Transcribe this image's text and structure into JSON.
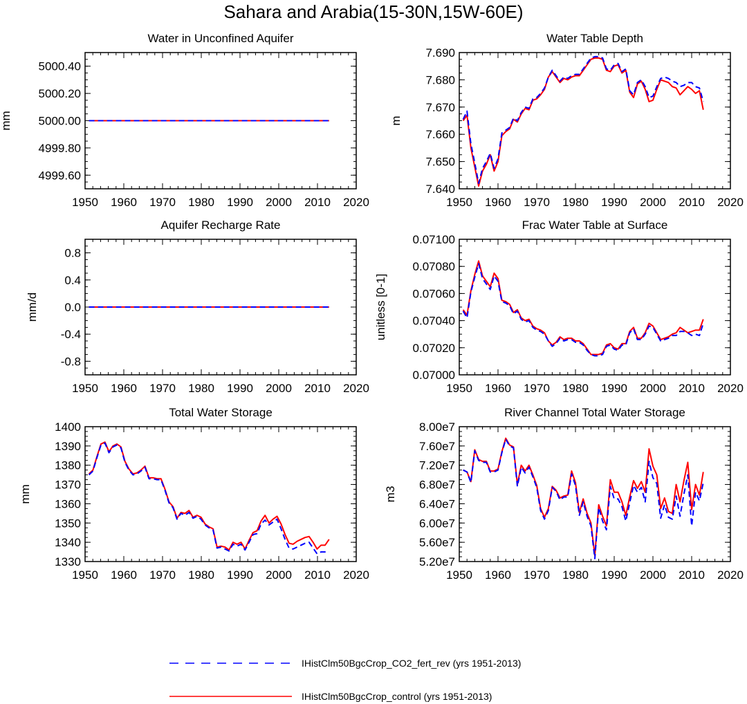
{
  "figure": {
    "title": "Sahara and Arabia(15-30N,15W-60E)"
  },
  "legend": {
    "items": [
      {
        "label": "IHistClm50BgcCrop_CO2_fert_rev (yrs 1951-2013)",
        "color": "#0000ff",
        "style": "dashed"
      },
      {
        "label": "IHistClm50BgcCrop_control (yrs 1951-2013)",
        "color": "#ff0000",
        "style": "solid"
      }
    ]
  },
  "chart_data": [
    {
      "type": "line",
      "title": "Water in Unconfined Aquifer",
      "ylabel": "mm",
      "xlim": [
        1950,
        2020
      ],
      "xticks": [
        1950,
        1960,
        1970,
        1980,
        1990,
        2000,
        2010,
        2020
      ],
      "ylim": [
        4999.5,
        5000.5
      ],
      "yticks": [
        4999.6,
        4999.8,
        5000.0,
        5000.2,
        5000.4
      ],
      "ytick_labels": [
        "4999.60",
        "4999.80",
        "5000.00",
        "5000.20",
        "5000.40"
      ],
      "x_start": 1951,
      "series": [
        {
          "name": "IHistClm50BgcCrop_CO2_fert_rev (yrs 1951-2013)",
          "color": "#0000ff",
          "style": "dashed",
          "values": [
            5000.0,
            5000.0
          ]
        },
        {
          "name": "IHistClm50BgcCrop_control (yrs 1951-2013)",
          "color": "#ff0000",
          "style": "solid",
          "values": [
            5000.0,
            5000.0
          ]
        }
      ],
      "x_end": 2013
    },
    {
      "type": "line",
      "title": "Water Table Depth",
      "ylabel": "m",
      "xlim": [
        1950,
        2020
      ],
      "xticks": [
        1950,
        1960,
        1970,
        1980,
        1990,
        2000,
        2010,
        2020
      ],
      "ylim": [
        7.64,
        7.69
      ],
      "yticks": [
        7.64,
        7.65,
        7.66,
        7.67,
        7.68,
        7.69
      ],
      "ytick_labels": [
        "7.640",
        "7.650",
        "7.660",
        "7.670",
        "7.680",
        "7.690"
      ],
      "x_start": 1951,
      "series": [
        {
          "name": "IHistClm50BgcCrop_CO2_fert_rev (yrs 1951-2013)",
          "color": "#0000ff",
          "style": "dashed",
          "values": [
            7.6655,
            7.6685,
            7.6565,
            7.6495,
            7.642,
            7.6475,
            7.65,
            7.653,
            7.6475,
            7.651,
            7.6605,
            7.6615,
            7.6625,
            7.666,
            7.665,
            7.668,
            7.67,
            7.6695,
            7.673,
            7.6735,
            7.675,
            7.677,
            7.681,
            7.6835,
            7.6815,
            7.6795,
            7.681,
            7.6805,
            7.6815,
            7.682,
            7.682,
            7.684,
            7.686,
            7.688,
            7.6885,
            7.6885,
            7.688,
            7.684,
            7.6835,
            7.6855,
            7.686,
            7.683,
            7.684,
            7.676,
            7.6745,
            7.679,
            7.68,
            7.6775,
            7.6735,
            7.674,
            7.6775,
            7.6805,
            7.681,
            7.6805,
            7.6795,
            7.679,
            7.6775,
            7.678,
            7.679,
            7.679,
            7.6775,
            7.677,
            7.672
          ]
        },
        {
          "name": "IHistClm50BgcCrop_control (yrs 1951-2013)",
          "color": "#ff0000",
          "style": "solid",
          "values": [
            7.665,
            7.667,
            7.655,
            7.648,
            7.641,
            7.6465,
            7.649,
            7.6525,
            7.6465,
            7.65,
            7.6595,
            7.661,
            7.662,
            7.6655,
            7.6645,
            7.6675,
            7.6695,
            7.669,
            7.6725,
            7.673,
            7.6745,
            7.6765,
            7.681,
            7.683,
            7.681,
            7.679,
            7.6805,
            7.68,
            7.681,
            7.6815,
            7.6815,
            7.6835,
            7.6855,
            7.6875,
            7.688,
            7.688,
            7.6875,
            7.6835,
            7.683,
            7.685,
            7.6855,
            7.6825,
            7.6835,
            7.6755,
            7.6735,
            7.6785,
            7.6795,
            7.6765,
            7.672,
            7.6725,
            7.6765,
            7.68,
            7.6795,
            7.679,
            7.6775,
            7.677,
            7.6745,
            7.676,
            7.6775,
            7.6765,
            7.675,
            7.676,
            7.669
          ]
        }
      ],
      "x_end": 2013
    },
    {
      "type": "line",
      "title": "Aquifer Recharge Rate",
      "ylabel": "mm/d",
      "xlim": [
        1950,
        2020
      ],
      "xticks": [
        1950,
        1960,
        1970,
        1980,
        1990,
        2000,
        2010,
        2020
      ],
      "ylim": [
        -1.0,
        1.0
      ],
      "yticks": [
        -0.8,
        -0.4,
        0.0,
        0.4,
        0.8
      ],
      "ytick_labels": [
        "-0.8",
        "-0.4",
        "0.0",
        "0.4",
        "0.8"
      ],
      "x_start": 1951,
      "series": [
        {
          "name": "IHistClm50BgcCrop_CO2_fert_rev (yrs 1951-2013)",
          "color": "#0000ff",
          "style": "dashed",
          "values": [
            0.0,
            0.0
          ]
        },
        {
          "name": "IHistClm50BgcCrop_control (yrs 1951-2013)",
          "color": "#ff0000",
          "style": "solid",
          "values": [
            0.0,
            0.0
          ]
        }
      ],
      "x_end": 2013
    },
    {
      "type": "line",
      "title": "Frac Water Table at Surface",
      "ylabel": "unitless [0-1]",
      "xlim": [
        1950,
        2020
      ],
      "xticks": [
        1950,
        1960,
        1970,
        1980,
        1990,
        2000,
        2010,
        2020
      ],
      "ylim": [
        0.07,
        0.071
      ],
      "yticks": [
        0.07,
        0.0702,
        0.0704,
        0.0706,
        0.0708,
        0.071
      ],
      "ytick_labels": [
        "0.07000",
        "0.07020",
        "0.07040",
        "0.07060",
        "0.07080",
        "0.07100"
      ],
      "x_start": 1951,
      "series": [
        {
          "name": "IHistClm50BgcCrop_CO2_fert_rev (yrs 1951-2013)",
          "color": "#0000ff",
          "style": "dashed",
          "values": [
            0.07047,
            0.07042,
            0.07061,
            0.07072,
            0.07082,
            0.07071,
            0.07067,
            0.07063,
            0.07073,
            0.07069,
            0.07054,
            0.07053,
            0.07051,
            0.07045,
            0.07047,
            0.07041,
            0.07039,
            0.0704,
            0.07035,
            0.07033,
            0.07032,
            0.0703,
            0.07025,
            0.07021,
            0.07023,
            0.07027,
            0.07025,
            0.07026,
            0.07026,
            0.07024,
            0.07024,
            0.07022,
            0.07018,
            0.07015,
            0.07014,
            0.07014,
            0.07015,
            0.07021,
            0.07022,
            0.07019,
            0.07018,
            0.07022,
            0.07022,
            0.07031,
            0.07034,
            0.07026,
            0.07026,
            0.0703,
            0.07036,
            0.07035,
            0.0703,
            0.07025,
            0.07026,
            0.07027,
            0.07029,
            0.07029,
            0.07032,
            0.07032,
            0.07031,
            0.07029,
            0.0703,
            0.07029,
            0.07038
          ]
        },
        {
          "name": "IHistClm50BgcCrop_control (yrs 1951-2013)",
          "color": "#ff0000",
          "style": "solid",
          "values": [
            0.07048,
            0.07044,
            0.07062,
            0.07074,
            0.07084,
            0.07073,
            0.07069,
            0.07065,
            0.07075,
            0.07071,
            0.07055,
            0.07054,
            0.07052,
            0.07046,
            0.07048,
            0.07042,
            0.0704,
            0.07041,
            0.07036,
            0.07034,
            0.07033,
            0.07031,
            0.07025,
            0.07022,
            0.07024,
            0.07028,
            0.07026,
            0.07027,
            0.07027,
            0.07025,
            0.07025,
            0.07023,
            0.07019,
            0.07015,
            0.07015,
            0.07015,
            0.07016,
            0.07022,
            0.07023,
            0.0702,
            0.07019,
            0.07023,
            0.07023,
            0.07032,
            0.07035,
            0.07027,
            0.07027,
            0.07031,
            0.07038,
            0.07036,
            0.07031,
            0.07026,
            0.07027,
            0.07028,
            0.0703,
            0.07031,
            0.07035,
            0.07033,
            0.07031,
            0.07032,
            0.07033,
            0.07033,
            0.07041
          ]
        }
      ],
      "x_end": 2013
    },
    {
      "type": "line",
      "title": "Total Water Storage",
      "ylabel": "mm",
      "xlim": [
        1950,
        2020
      ],
      "xticks": [
        1950,
        1960,
        1970,
        1980,
        1990,
        2000,
        2010,
        2020
      ],
      "ylim": [
        1330,
        1400
      ],
      "yticks": [
        1330,
        1340,
        1350,
        1360,
        1370,
        1380,
        1390,
        1400
      ],
      "ytick_labels": [
        "1330",
        "1340",
        "1350",
        "1360",
        "1370",
        "1380",
        "1390",
        "1400"
      ],
      "x_start": 1951,
      "series": [
        {
          "name": "IHistClm50BgcCrop_CO2_fert_rev (yrs 1951-2013)",
          "color": "#0000ff",
          "style": "dashed",
          "values": [
            1375,
            1377,
            1384,
            1390.5,
            1391.5,
            1386.5,
            1389.5,
            1390.5,
            1389,
            1381.5,
            1377.5,
            1375,
            1375.5,
            1377,
            1379,
            1373,
            1373,
            1372.5,
            1372.5,
            1367,
            1360.5,
            1358,
            1352,
            1355,
            1354,
            1355.5,
            1352.5,
            1353.5,
            1352,
            1349,
            1347.5,
            1346.5,
            1337,
            1337.5,
            1336.5,
            1335.5,
            1339,
            1338,
            1339,
            1336,
            1340,
            1344,
            1344.5,
            1349.5,
            1351.5,
            1349,
            1350.5,
            1352,
            1347,
            1341.5,
            1337,
            1336.5,
            1337.5,
            1338.5,
            1339.5,
            1340,
            1337,
            1334,
            1335,
            1335,
            1335
          ]
        },
        {
          "name": "IHistClm50BgcCrop_control (yrs 1951-2013)",
          "color": "#ff0000",
          "style": "solid",
          "values": [
            1375.5,
            1377.5,
            1384.5,
            1391,
            1392,
            1387,
            1390,
            1391,
            1389.5,
            1382,
            1378,
            1375.5,
            1376,
            1377.5,
            1379.5,
            1373.5,
            1373.5,
            1373,
            1373,
            1367.5,
            1361,
            1358.5,
            1352.5,
            1355.5,
            1355,
            1356.5,
            1353,
            1354,
            1353,
            1349.5,
            1348,
            1347,
            1337.5,
            1338,
            1337.5,
            1336,
            1340,
            1339,
            1340,
            1336.5,
            1341,
            1345,
            1346,
            1351,
            1354,
            1350,
            1352,
            1353.5,
            1349.5,
            1344,
            1339.5,
            1339,
            1340.5,
            1341.5,
            1342.5,
            1343,
            1340,
            1336.5,
            1338.5,
            1338.5,
            1341.5
          ]
        }
      ],
      "x_end": 2013
    },
    {
      "type": "line",
      "title": "River Channel Total Water Storage",
      "ylabel": "m3",
      "xlim": [
        1950,
        2020
      ],
      "xticks": [
        1950,
        1960,
        1970,
        1980,
        1990,
        2000,
        2010,
        2020
      ],
      "ylim": [
        52000000,
        80000000
      ],
      "yticks": [
        52000000,
        56000000,
        60000000,
        64000000,
        68000000,
        72000000,
        76000000,
        80000000
      ],
      "ytick_labels": [
        "5.20e7",
        "5.60e7",
        "6.00e7",
        "6.40e7",
        "6.80e7",
        "7.20e7",
        "7.60e7",
        "8.00e7"
      ],
      "x_start": 1951,
      "series": [
        {
          "name": "IHistClm50BgcCrop_CO2_fert_rev (yrs 1951-2013)",
          "color": "#0000ff",
          "style": "dashed",
          "values": [
            71000000,
            70600000,
            68400000,
            75000000,
            73000000,
            72600000,
            72600000,
            70600000,
            70600000,
            71000000,
            74600000,
            77400000,
            76000000,
            75600000,
            67600000,
            71600000,
            70400000,
            71600000,
            69600000,
            67400000,
            62600000,
            60800000,
            62600000,
            67400000,
            66600000,
            64800000,
            65400000,
            65400000,
            70200000,
            67800000,
            61600000,
            64400000,
            61400000,
            59400000,
            52600000,
            63200000,
            60400000,
            58600000,
            67600000,
            65000000,
            65000000,
            63400000,
            60400000,
            64200000,
            67800000,
            66400000,
            67400000,
            64400000,
            72800000,
            69400000,
            68200000,
            61000000,
            63800000,
            61200000,
            60800000,
            65600000,
            61400000,
            66000000,
            70000000,
            59400000,
            66400000,
            64600000,
            68400000
          ]
        },
        {
          "name": "IHistClm50BgcCrop_control (yrs 1951-2013)",
          "color": "#ff0000",
          "style": "solid",
          "values": [
            71000000,
            70600000,
            68600000,
            75200000,
            73200000,
            72800000,
            72800000,
            70800000,
            70800000,
            71200000,
            74800000,
            77600000,
            76200000,
            75800000,
            68000000,
            72000000,
            70800000,
            72000000,
            70000000,
            67800000,
            63000000,
            61200000,
            63000000,
            67600000,
            66800000,
            65200000,
            65600000,
            65800000,
            70800000,
            68400000,
            62200000,
            65000000,
            62000000,
            60000000,
            53200000,
            63800000,
            61400000,
            59400000,
            69000000,
            66400000,
            66400000,
            64400000,
            61600000,
            65400000,
            68800000,
            67200000,
            68600000,
            66400000,
            75400000,
            71800000,
            70000000,
            63000000,
            65200000,
            62400000,
            62000000,
            68000000,
            64400000,
            68800000,
            72600000,
            62800000,
            68000000,
            65800000,
            70600000
          ]
        }
      ],
      "x_end": 2013
    }
  ]
}
